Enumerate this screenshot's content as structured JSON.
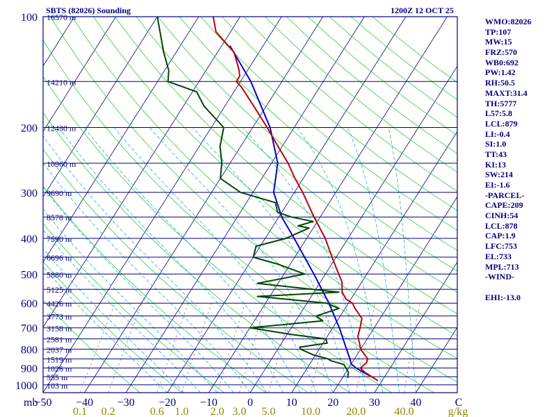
{
  "header": {
    "station": "SBTS (82026) Sounding",
    "time": "1200Z 12 OCT 25"
  },
  "params": [
    "WMO:82026",
    "TP:107",
    "MW:15",
    "FRZ:570",
    "WB0:692",
    "PW:1.42",
    "RH:50.5",
    "MAXT:31.4",
    "TH:5777",
    "L57:5.8",
    "LCL:879",
    "LI:-0.4",
    "SI:1.0",
    "TT:43",
    "KI:13",
    "SW:214",
    "EI:-1.6",
    "-PARCEL-",
    "CAPE:209",
    "CINH:54",
    "LCL:878",
    "CAP:1.9",
    "LFC:753",
    "EL:733",
    "MPL:713",
    "-WIND-",
    "",
    "EHI:-13.0"
  ],
  "colors": {
    "frame": "#000080",
    "isobar": "#000080",
    "isotherm": "#000080",
    "dry_adiabat": "#33cc33",
    "moist_adiabat": "#22aadd",
    "mixing_ratio": "#888866",
    "temperature": "#bb0000",
    "dewpoint": "#004400",
    "parcel": "#0000cc",
    "mixing_label": "#888800"
  },
  "chart_data": {
    "type": "skew-t",
    "title": "SBTS (82026) Sounding",
    "subtitle": "1200Z 12 OCT 25",
    "p_unit_label": "mb",
    "mixing_unit_label": "g/kg",
    "pressure_ticks": [
      100,
      200,
      300,
      400,
      500,
      600,
      700,
      800,
      900,
      1000
    ],
    "p_range": [
      100,
      1050
    ],
    "temperature_ticks": [
      -50,
      -40,
      -30,
      -20,
      -10,
      0,
      10,
      20,
      30,
      40
    ],
    "temp_range_bottom": [
      -50,
      50
    ],
    "mixing_ratio_labels": [
      "0.1",
      "0.2",
      "0.6",
      "1.0",
      "2.0",
      "3.0",
      "5.0",
      "10.0",
      "20.0",
      "40.0"
    ],
    "mixing_ratio_values": [
      0.1,
      0.2,
      0.6,
      1.0,
      2.0,
      3.0,
      5.0,
      10.0,
      20.0,
      40.0
    ],
    "heights": [
      {
        "p": 100,
        "label": "16570 m"
      },
      {
        "p": 150,
        "label": "14210 m"
      },
      {
        "p": 200,
        "label": "12430 m"
      },
      {
        "p": 250,
        "label": "10960 m"
      },
      {
        "p": 300,
        "label": "9690 m"
      },
      {
        "p": 350,
        "label": "8578 m"
      },
      {
        "p": 400,
        "label": "7590 m"
      },
      {
        "p": 450,
        "label": "6696 m"
      },
      {
        "p": 500,
        "label": "5880 m"
      },
      {
        "p": 550,
        "label": "5125 m"
      },
      {
        "p": 600,
        "label": "4426 m"
      },
      {
        "p": 650,
        "label": "3773 m"
      },
      {
        "p": 700,
        "label": "3158 m"
      },
      {
        "p": 750,
        "label": "2581 m"
      },
      {
        "p": 800,
        "label": "2037 m"
      },
      {
        "p": 850,
        "label": "1519 m"
      },
      {
        "p": 900,
        "label": "1026 m"
      },
      {
        "p": 950,
        "label": "555 m"
      },
      {
        "p": 1000,
        "label": "103 m"
      }
    ],
    "temperature": [
      {
        "p": 975,
        "t": 29.0
      },
      {
        "p": 958,
        "t": 27.6
      },
      {
        "p": 925,
        "t": 24.6
      },
      {
        "p": 900,
        "t": 22.8
      },
      {
        "p": 870,
        "t": 23.5
      },
      {
        "p": 850,
        "t": 23.2
      },
      {
        "p": 800,
        "t": 20.0
      },
      {
        "p": 770,
        "t": 18.8
      },
      {
        "p": 740,
        "t": 17.4
      },
      {
        "p": 700,
        "t": 16.6
      },
      {
        "p": 660,
        "t": 15.6
      },
      {
        "p": 620,
        "t": 12.4
      },
      {
        "p": 600,
        "t": 11.0
      },
      {
        "p": 585,
        "t": 8.8
      },
      {
        "p": 560,
        "t": 6.8
      },
      {
        "p": 525,
        "t": 5.2
      },
      {
        "p": 500,
        "t": 3.2
      },
      {
        "p": 450,
        "t": -1.0
      },
      {
        "p": 400,
        "t": -5.5
      },
      {
        "p": 350,
        "t": -11.5
      },
      {
        "p": 300,
        "t": -18.0
      },
      {
        "p": 275,
        "t": -22.0
      },
      {
        "p": 250,
        "t": -26.0
      },
      {
        "p": 225,
        "t": -31.0
      },
      {
        "p": 200,
        "t": -36.5
      },
      {
        "p": 175,
        "t": -43.0
      },
      {
        "p": 155,
        "t": -49.0
      },
      {
        "p": 150,
        "t": -51.0
      },
      {
        "p": 145,
        "t": -51.0
      },
      {
        "p": 140,
        "t": -52.0
      },
      {
        "p": 125,
        "t": -56.0
      },
      {
        "p": 110,
        "t": -63.5
      },
      {
        "p": 100,
        "t": -66.5
      }
    ],
    "dewpoint": [
      {
        "p": 958,
        "t": 21.3
      },
      {
        "p": 925,
        "t": 20.6
      },
      {
        "p": 880,
        "t": 18.3
      },
      {
        "p": 860,
        "t": 14.6
      },
      {
        "p": 850,
        "t": 13.6
      },
      {
        "p": 830,
        "t": 9.6
      },
      {
        "p": 800,
        "t": 5.5
      },
      {
        "p": 790,
        "t": 5.0
      },
      {
        "p": 770,
        "t": 11.0
      },
      {
        "p": 750,
        "t": 10.0
      },
      {
        "p": 730,
        "t": 1.2
      },
      {
        "p": 700,
        "t": -10.0
      },
      {
        "p": 670,
        "t": 6.5
      },
      {
        "p": 650,
        "t": 4.2
      },
      {
        "p": 620,
        "t": 8.5
      },
      {
        "p": 600,
        "t": 4.8
      },
      {
        "p": 575,
        "t": -13.0
      },
      {
        "p": 560,
        "t": 6.0
      },
      {
        "p": 530,
        "t": -15.0
      },
      {
        "p": 500,
        "t": -5.0
      },
      {
        "p": 470,
        "t": -13.0
      },
      {
        "p": 450,
        "t": -20.0
      },
      {
        "p": 420,
        "t": -21.0
      },
      {
        "p": 400,
        "t": -15.0
      },
      {
        "p": 375,
        "t": -11.0
      },
      {
        "p": 370,
        "t": -14.0
      },
      {
        "p": 360,
        "t": -11.0
      },
      {
        "p": 350,
        "t": -17.0
      },
      {
        "p": 340,
        "t": -21.0
      },
      {
        "p": 320,
        "t": -23.0
      },
      {
        "p": 300,
        "t": -33.0
      },
      {
        "p": 275,
        "t": -40.0
      },
      {
        "p": 250,
        "t": -42.0
      },
      {
        "p": 225,
        "t": -45.0
      },
      {
        "p": 200,
        "t": -47.0
      },
      {
        "p": 175,
        "t": -55.0
      },
      {
        "p": 160,
        "t": -59.0
      },
      {
        "p": 150,
        "t": -67.5
      },
      {
        "p": 140,
        "t": -69.0
      },
      {
        "p": 125,
        "t": -73.0
      },
      {
        "p": 110,
        "t": -77.0
      },
      {
        "p": 100,
        "t": -80.0
      }
    ],
    "parcel": [
      {
        "p": 958,
        "t": 27.6
      },
      {
        "p": 925,
        "t": 24.2
      },
      {
        "p": 900,
        "t": 21.8
      },
      {
        "p": 878,
        "t": 20.0
      },
      {
        "p": 850,
        "t": 18.9
      },
      {
        "p": 800,
        "t": 16.6
      },
      {
        "p": 700,
        "t": 11.6
      },
      {
        "p": 600,
        "t": 5.3
      },
      {
        "p": 500,
        "t": -2.8
      },
      {
        "p": 400,
        "t": -13.0
      },
      {
        "p": 350,
        "t": -19.3
      },
      {
        "p": 300,
        "t": -25.0
      },
      {
        "p": 250,
        "t": -28.5
      },
      {
        "p": 200,
        "t": -35.8
      },
      {
        "p": 150,
        "t": -47.5
      },
      {
        "p": 120,
        "t": -58.0
      }
    ],
    "skew_px_per_decade": 336
  }
}
